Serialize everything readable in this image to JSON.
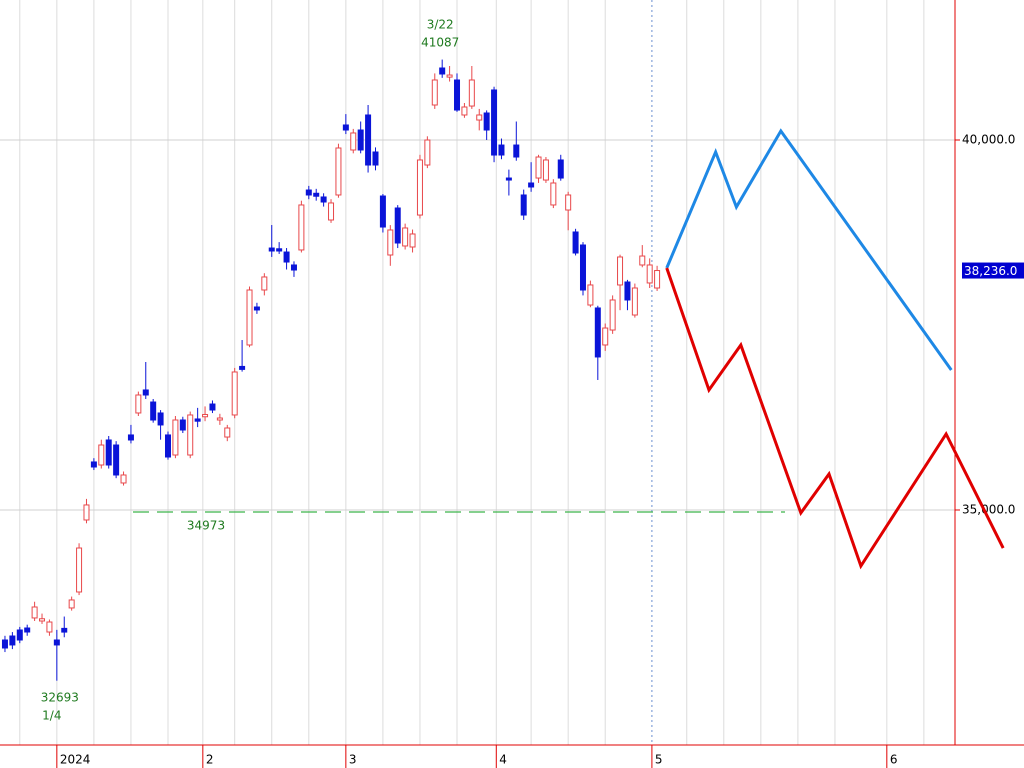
{
  "chart_data": {
    "type": "candlestick",
    "open": [
      33243,
      33297,
      33378,
      33405,
      33541,
      33500,
      33351,
      33243,
      33400,
      33676,
      33892,
      34865,
      35649,
      35608,
      35946,
      35878,
      35365,
      36014,
      36311,
      36622,
      36459,
      36311,
      36014,
      35743,
      36216,
      35743,
      36230,
      36260,
      36432,
      36216,
      35986,
      36284,
      36940,
      37230,
      37743,
      37973,
      38540,
      38530,
      38486,
      38311,
      38514,
      39324,
      39280,
      39230,
      38919,
      39257,
      40203,
      39865,
      40135,
      40338,
      39838,
      39243,
      38446,
      39081,
      38568,
      38554,
      38986,
      39662,
      40473,
      40973,
      40850,
      40811,
      40338,
      40459,
      40270,
      40365,
      40676,
      39932,
      39486,
      39932,
      39257,
      39419,
      39486,
      39459,
      39122,
      39730,
      39054,
      38757,
      38581,
      37770,
      37730,
      37230,
      37432,
      38041,
      38081,
      37635,
      38311,
      38068,
      38000
    ],
    "high": [
      33300,
      33350,
      33420,
      33450,
      33760,
      33600,
      33520,
      33380,
      33560,
      33830,
      34550,
      35150,
      35700,
      35950,
      36000,
      35930,
      35520,
      36150,
      36600,
      37000,
      36500,
      36350,
      36060,
      36270,
      36260,
      36330,
      36380,
      36400,
      36480,
      36300,
      36150,
      36920,
      37297,
      38020,
      37800,
      38200,
      38851,
      38620,
      38540,
      38360,
      39180,
      39380,
      39340,
      39280,
      39200,
      39950,
      40350,
      40150,
      40250,
      40473,
      39900,
      39270,
      38850,
      39120,
      38870,
      38790,
      39800,
      40050,
      40900,
      41087,
      41000,
      40900,
      40500,
      41000,
      40420,
      40400,
      40720,
      40020,
      39600,
      40250,
      39330,
      39700,
      39800,
      39770,
      39470,
      39800,
      39300,
      38800,
      38620,
      38100,
      37760,
      37520,
      37900,
      38450,
      38110,
      38060,
      38580,
      38400,
      38300
    ],
    "low": [
      33080,
      33120,
      33200,
      33300,
      33500,
      33460,
      33300,
      32693,
      33280,
      33640,
      33850,
      34820,
      35540,
      35560,
      35560,
      35430,
      35330,
      35900,
      36270,
      36500,
      36180,
      35950,
      35680,
      35700,
      36040,
      35700,
      36120,
      36200,
      36310,
      36150,
      35930,
      36240,
      36870,
      37200,
      37650,
      37900,
      38420,
      38460,
      38250,
      38150,
      38480,
      39200,
      39180,
      39100,
      38880,
      39220,
      40080,
      39820,
      39820,
      39560,
      39590,
      38750,
      38300,
      38540,
      38520,
      38480,
      38940,
      39620,
      40420,
      40840,
      40790,
      40380,
      40300,
      40420,
      40130,
      40000,
      39700,
      39740,
      39250,
      39720,
      38920,
      39300,
      39420,
      39420,
      39080,
      39450,
      38780,
      38440,
      37900,
      37740,
      36757,
      37150,
      37380,
      37700,
      37700,
      37600,
      38280,
      38000,
      37960
    ],
    "close": [
      33135,
      33176,
      33243,
      33351,
      33689,
      33530,
      33486,
      33176,
      33350,
      33784,
      34486,
      35068,
      35581,
      35878,
      35608,
      35473,
      35473,
      35946,
      36554,
      36554,
      36216,
      36149,
      35716,
      36216,
      36081,
      36284,
      36200,
      36290,
      36351,
      36243,
      36108,
      36865,
      36900,
      37973,
      37703,
      38149,
      38500,
      38500,
      38351,
      38243,
      39122,
      39257,
      39240,
      39162,
      39149,
      39892,
      40135,
      40095,
      39865,
      39662,
      39662,
      38824,
      38784,
      38608,
      38811,
      38730,
      39730,
      40000,
      40811,
      40892,
      40878,
      40405,
      40446,
      40811,
      40338,
      40135,
      39797,
      39797,
      39459,
      39770,
      38986,
      39365,
      39770,
      39730,
      39419,
      39486,
      39257,
      38473,
      37973,
      38041,
      37068,
      37459,
      37838,
      38419,
      37838,
      38000,
      38432,
      38311,
      38236
    ],
    "up_color": "#e8474a",
    "down_color": "#0a14d8",
    "xlim": [
      -0.67,
      128.2
    ],
    "ylim": [
      31824,
      41892
    ],
    "yticks": [
      {
        "value": 40000,
        "label": "40,000.0"
      },
      {
        "value": 35000,
        "label": "35,000.0"
      }
    ],
    "xticks": [
      {
        "value": 7,
        "label": "2024"
      },
      {
        "value": 26.7,
        "label": "2"
      },
      {
        "value": 46,
        "label": "3"
      },
      {
        "value": 66.3,
        "label": "4"
      },
      {
        "value": 87.3,
        "label": "5"
      },
      {
        "value": 119,
        "label": "6"
      }
    ],
    "xgrid": [
      2,
      7,
      12,
      17,
      22,
      26.7,
      31,
      36,
      41,
      46,
      51,
      56,
      61,
      66.3,
      71,
      76,
      81,
      92,
      97,
      102,
      107,
      112,
      119,
      124
    ],
    "grid": true,
    "annotations": [
      {
        "date": "3/22",
        "value": 41087,
        "position": "above"
      },
      {
        "date": "1/4",
        "value": 32693,
        "position": "below"
      }
    ],
    "support_line": {
      "value": 34973,
      "color": "#3cb44b"
    },
    "current_price": {
      "value": 38236,
      "label": "38,236.0"
    },
    "projections": [
      {
        "color": "#1e88e5",
        "x": [
          89.3,
          95.9,
          98.7,
          104.7,
          127.7
        ],
        "values": [
          38270,
          39838,
          39095,
          40122,
          36892
        ]
      },
      {
        "color": "#e00000",
        "x": [
          89.3,
          95.0,
          99.3,
          107.4,
          111.2,
          115.5,
          127.0,
          134.7
        ],
        "values": [
          38270,
          36622,
          37230,
          34960,
          35486,
          34243,
          36027,
          34486
        ]
      }
    ]
  }
}
